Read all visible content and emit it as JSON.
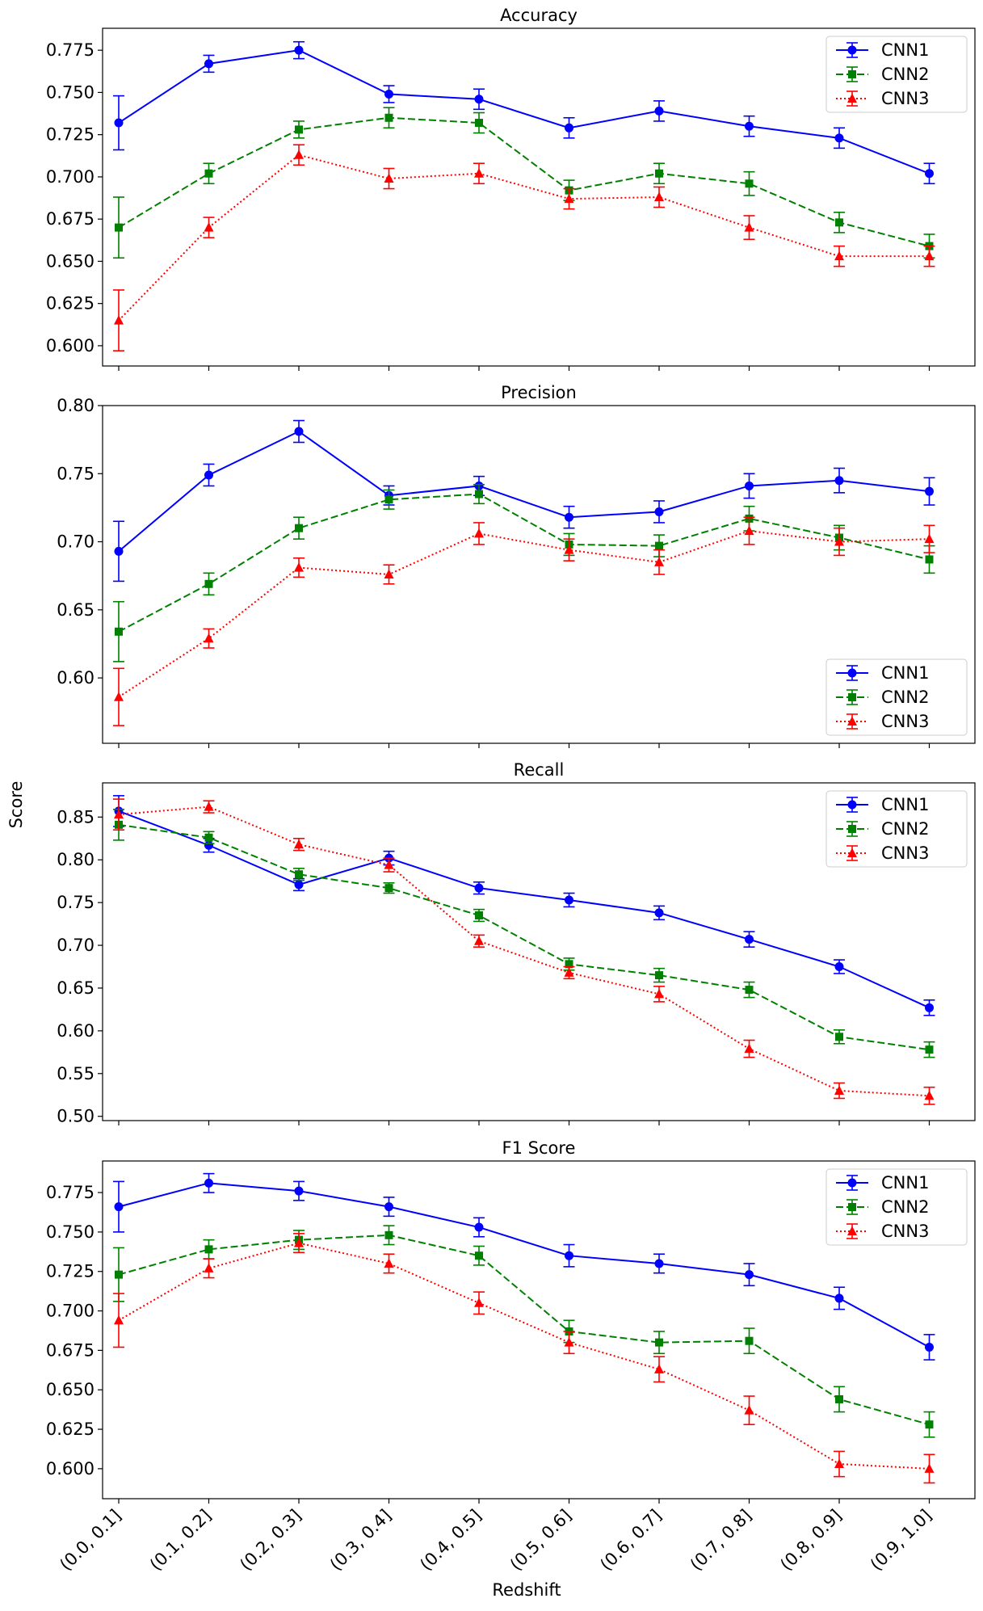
{
  "figure": {
    "ylabel": "Score",
    "xlabel": "Redshift",
    "x_tick_labels": [
      "(0.0, 0.1]",
      "(0.1, 0.2]",
      "(0.2, 0.3]",
      "(0.3, 0.4]",
      "(0.4, 0.5]",
      "(0.5, 0.6]",
      "(0.6, 0.7]",
      "(0.7, 0.8]",
      "(0.8, 0.9]",
      "(0.9, 1.0]"
    ],
    "series_styles": [
      {
        "name": "CNN1",
        "color": "#0000ff",
        "marker": "circle",
        "line": "solid"
      },
      {
        "name": "CNN2",
        "color": "#008000",
        "marker": "square",
        "line": "dashed"
      },
      {
        "name": "CNN3",
        "color": "#ff0000",
        "marker": "triangle",
        "line": "dotted"
      }
    ]
  },
  "chart_data": [
    {
      "type": "line",
      "title": "Accuracy",
      "xlabel": "Redshift",
      "ylabel": "Score",
      "categories": [
        "(0.0, 0.1]",
        "(0.1, 0.2]",
        "(0.2, 0.3]",
        "(0.3, 0.4]",
        "(0.4, 0.5]",
        "(0.5, 0.6]",
        "(0.6, 0.7]",
        "(0.7, 0.8]",
        "(0.8, 0.9]",
        "(0.9, 1.0]"
      ],
      "ylim": [
        0.588,
        0.788
      ],
      "yticks": [
        0.6,
        0.625,
        0.65,
        0.675,
        0.7,
        0.725,
        0.75,
        0.775
      ],
      "ytick_labels": [
        "0.600",
        "0.625",
        "0.650",
        "0.675",
        "0.700",
        "0.725",
        "0.750",
        "0.775"
      ],
      "legend_position": "top-right",
      "series": [
        {
          "name": "CNN1",
          "values": [
            0.732,
            0.767,
            0.775,
            0.749,
            0.746,
            0.729,
            0.739,
            0.73,
            0.723,
            0.702
          ],
          "errors": [
            0.016,
            0.005,
            0.005,
            0.005,
            0.006,
            0.006,
            0.006,
            0.006,
            0.006,
            0.006
          ]
        },
        {
          "name": "CNN2",
          "values": [
            0.67,
            0.702,
            0.728,
            0.735,
            0.732,
            0.692,
            0.702,
            0.696,
            0.673,
            0.659
          ],
          "errors": [
            0.018,
            0.006,
            0.005,
            0.006,
            0.006,
            0.006,
            0.006,
            0.007,
            0.006,
            0.007
          ]
        },
        {
          "name": "CNN3",
          "values": [
            0.615,
            0.67,
            0.713,
            0.699,
            0.702,
            0.687,
            0.688,
            0.67,
            0.653,
            0.653
          ],
          "errors": [
            0.018,
            0.006,
            0.006,
            0.006,
            0.006,
            0.006,
            0.006,
            0.007,
            0.006,
            0.006
          ]
        }
      ]
    },
    {
      "type": "line",
      "title": "Precision",
      "xlabel": "Redshift",
      "ylabel": "Score",
      "categories": [
        "(0.0, 0.1]",
        "(0.1, 0.2]",
        "(0.2, 0.3]",
        "(0.3, 0.4]",
        "(0.4, 0.5]",
        "(0.5, 0.6]",
        "(0.6, 0.7]",
        "(0.7, 0.8]",
        "(0.8, 0.9]",
        "(0.9, 1.0]"
      ],
      "ylim": [
        0.552,
        0.8
      ],
      "yticks": [
        0.6,
        0.65,
        0.7,
        0.75,
        0.8
      ],
      "ytick_labels": [
        "0.60",
        "0.65",
        "0.70",
        "0.75",
        "0.80"
      ],
      "legend_position": "bottom-right",
      "series": [
        {
          "name": "CNN1",
          "values": [
            0.693,
            0.749,
            0.781,
            0.734,
            0.741,
            0.718,
            0.722,
            0.741,
            0.745,
            0.737
          ],
          "errors": [
            0.022,
            0.008,
            0.008,
            0.007,
            0.007,
            0.008,
            0.008,
            0.009,
            0.009,
            0.01
          ]
        },
        {
          "name": "CNN2",
          "values": [
            0.634,
            0.669,
            0.71,
            0.731,
            0.735,
            0.698,
            0.697,
            0.717,
            0.703,
            0.687
          ],
          "errors": [
            0.022,
            0.008,
            0.008,
            0.007,
            0.007,
            0.008,
            0.008,
            0.009,
            0.009,
            0.01
          ]
        },
        {
          "name": "CNN3",
          "values": [
            0.586,
            0.629,
            0.681,
            0.676,
            0.706,
            0.694,
            0.685,
            0.708,
            0.7,
            0.702
          ],
          "errors": [
            0.021,
            0.007,
            0.007,
            0.007,
            0.008,
            0.008,
            0.009,
            0.01,
            0.01,
            0.01
          ]
        }
      ]
    },
    {
      "type": "line",
      "title": "Recall",
      "xlabel": "Redshift",
      "ylabel": "Score",
      "categories": [
        "(0.0, 0.1]",
        "(0.1, 0.2]",
        "(0.2, 0.3]",
        "(0.3, 0.4]",
        "(0.4, 0.5]",
        "(0.5, 0.6]",
        "(0.6, 0.7]",
        "(0.7, 0.8]",
        "(0.8, 0.9]",
        "(0.9, 1.0]"
      ],
      "ylim": [
        0.495,
        0.89
      ],
      "yticks": [
        0.5,
        0.55,
        0.6,
        0.65,
        0.7,
        0.75,
        0.8,
        0.85
      ],
      "ytick_labels": [
        "0.50",
        "0.55",
        "0.60",
        "0.65",
        "0.70",
        "0.75",
        "0.80",
        "0.85"
      ],
      "legend_position": "top-right",
      "series": [
        {
          "name": "CNN1",
          "values": [
            0.857,
            0.817,
            0.771,
            0.802,
            0.767,
            0.753,
            0.738,
            0.707,
            0.675,
            0.627
          ],
          "errors": [
            0.018,
            0.008,
            0.007,
            0.008,
            0.007,
            0.008,
            0.008,
            0.009,
            0.008,
            0.009
          ]
        },
        {
          "name": "CNN2",
          "values": [
            0.841,
            0.826,
            0.783,
            0.767,
            0.735,
            0.678,
            0.665,
            0.648,
            0.593,
            0.578
          ],
          "errors": [
            0.018,
            0.007,
            0.007,
            0.006,
            0.007,
            0.007,
            0.008,
            0.009,
            0.008,
            0.009
          ]
        },
        {
          "name": "CNN3",
          "values": [
            0.853,
            0.862,
            0.818,
            0.794,
            0.705,
            0.668,
            0.643,
            0.579,
            0.53,
            0.524
          ],
          "errors": [
            0.018,
            0.007,
            0.007,
            0.008,
            0.007,
            0.007,
            0.009,
            0.01,
            0.009,
            0.01
          ]
        }
      ]
    },
    {
      "type": "line",
      "title": "F1 Score",
      "xlabel": "Redshift",
      "ylabel": "Score",
      "categories": [
        "(0.0, 0.1]",
        "(0.1, 0.2]",
        "(0.2, 0.3]",
        "(0.3, 0.4]",
        "(0.4, 0.5]",
        "(0.5, 0.6]",
        "(0.6, 0.7]",
        "(0.7, 0.8]",
        "(0.8, 0.9]",
        "(0.9, 1.0]"
      ],
      "ylim": [
        0.581,
        0.795
      ],
      "yticks": [
        0.6,
        0.625,
        0.65,
        0.675,
        0.7,
        0.725,
        0.75,
        0.775
      ],
      "ytick_labels": [
        "0.600",
        "0.625",
        "0.650",
        "0.675",
        "0.700",
        "0.725",
        "0.750",
        "0.775"
      ],
      "legend_position": "top-right",
      "series": [
        {
          "name": "CNN1",
          "values": [
            0.766,
            0.781,
            0.776,
            0.766,
            0.753,
            0.735,
            0.73,
            0.723,
            0.708,
            0.677
          ],
          "errors": [
            0.016,
            0.006,
            0.006,
            0.006,
            0.006,
            0.007,
            0.006,
            0.007,
            0.007,
            0.008
          ]
        },
        {
          "name": "CNN2",
          "values": [
            0.723,
            0.739,
            0.745,
            0.748,
            0.735,
            0.687,
            0.68,
            0.681,
            0.644,
            0.628
          ],
          "errors": [
            0.017,
            0.006,
            0.006,
            0.006,
            0.006,
            0.007,
            0.007,
            0.008,
            0.008,
            0.008
          ]
        },
        {
          "name": "CNN3",
          "values": [
            0.694,
            0.727,
            0.743,
            0.73,
            0.705,
            0.68,
            0.663,
            0.637,
            0.603,
            0.6
          ],
          "errors": [
            0.017,
            0.006,
            0.006,
            0.006,
            0.007,
            0.007,
            0.008,
            0.009,
            0.008,
            0.009
          ]
        }
      ]
    }
  ]
}
